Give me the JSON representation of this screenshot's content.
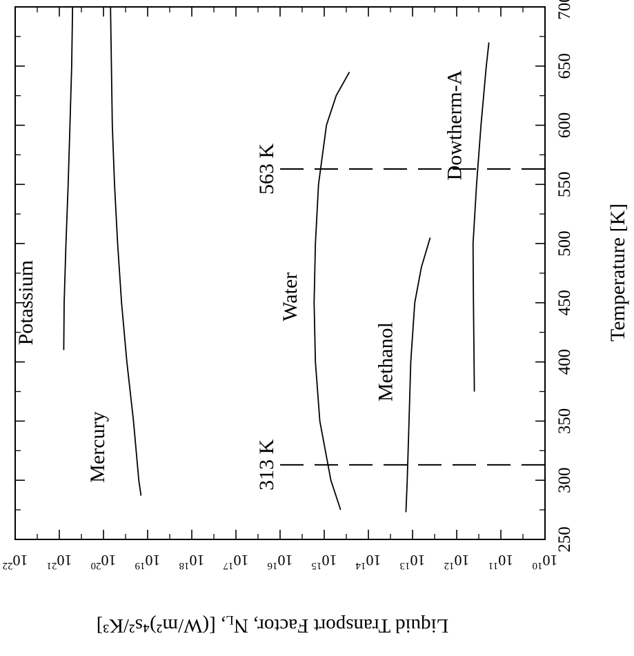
{
  "chart_data": {
    "type": "line",
    "orientation": "rotated 90 degrees counter-clockwise (x axis runs up the right side, y axis along the bottom, printed upside-down)",
    "xlabel": "Temperature [K]",
    "ylabel": "Liquid Transport Factor, N",
    "ylabel_sub": "L",
    "ylabel_units": ", [(W/m²)⁴s²/K³]",
    "xlim": [
      250,
      700
    ],
    "ylim_log10": [
      10,
      22
    ],
    "yscale": "log",
    "x_ticks": [
      "250",
      "300",
      "350",
      "400",
      "450",
      "500",
      "550",
      "600",
      "650",
      "700"
    ],
    "y_ticks": [
      {
        "base": "10",
        "exp": "10"
      },
      {
        "base": "10",
        "exp": "11"
      },
      {
        "base": "10",
        "exp": "12"
      },
      {
        "base": "10",
        "exp": "13"
      },
      {
        "base": "10",
        "exp": "14"
      },
      {
        "base": "10",
        "exp": "15"
      },
      {
        "base": "10",
        "exp": "16"
      },
      {
        "base": "10",
        "exp": "17"
      },
      {
        "base": "10",
        "exp": "18"
      },
      {
        "base": "10",
        "exp": "19"
      },
      {
        "base": "10",
        "exp": "20"
      },
      {
        "base": "10",
        "exp": "21"
      },
      {
        "base": "10",
        "exp": "22"
      }
    ],
    "series": [
      {
        "name": "Potassium",
        "points": [
          [
            410,
            20.9
          ],
          [
            450,
            20.89
          ],
          [
            500,
            20.85
          ],
          [
            550,
            20.8
          ],
          [
            600,
            20.76
          ],
          [
            650,
            20.72
          ],
          [
            700,
            20.7
          ]
        ]
      },
      {
        "name": "Mercury",
        "points": [
          [
            287,
            19.15
          ],
          [
            300,
            19.2
          ],
          [
            350,
            19.32
          ],
          [
            400,
            19.47
          ],
          [
            450,
            19.59
          ],
          [
            500,
            19.68
          ],
          [
            550,
            19.75
          ],
          [
            600,
            19.8
          ],
          [
            650,
            19.82
          ],
          [
            700,
            19.84
          ]
        ]
      },
      {
        "name": "Water",
        "points": [
          [
            275,
            14.63
          ],
          [
            300,
            14.85
          ],
          [
            350,
            15.1
          ],
          [
            400,
            15.2
          ],
          [
            450,
            15.23
          ],
          [
            500,
            15.2
          ],
          [
            550,
            15.13
          ],
          [
            600,
            14.95
          ],
          [
            625,
            14.73
          ],
          [
            645,
            14.43
          ]
        ]
      },
      {
        "name": "Methanol",
        "points": [
          [
            273,
            13.15
          ],
          [
            300,
            13.12
          ],
          [
            350,
            13.08
          ],
          [
            400,
            13.04
          ],
          [
            450,
            12.95
          ],
          [
            480,
            12.8
          ],
          [
            505,
            12.6
          ]
        ]
      },
      {
        "name": "Dowtherm-A",
        "points": [
          [
            375,
            11.6
          ],
          [
            450,
            11.62
          ],
          [
            500,
            11.63
          ],
          [
            550,
            11.55
          ],
          [
            600,
            11.45
          ],
          [
            650,
            11.33
          ],
          [
            670,
            11.27
          ]
        ]
      }
    ],
    "reference_lines": [
      {
        "label": "313 K",
        "x": 313,
        "y_from_log10": 10,
        "y_to_log10": 16
      },
      {
        "label": "563 K",
        "x": 563,
        "y_from_log10": 10,
        "y_to_log10": 16
      }
    ],
    "grid": false,
    "legend": "none (series labeled directly)"
  }
}
